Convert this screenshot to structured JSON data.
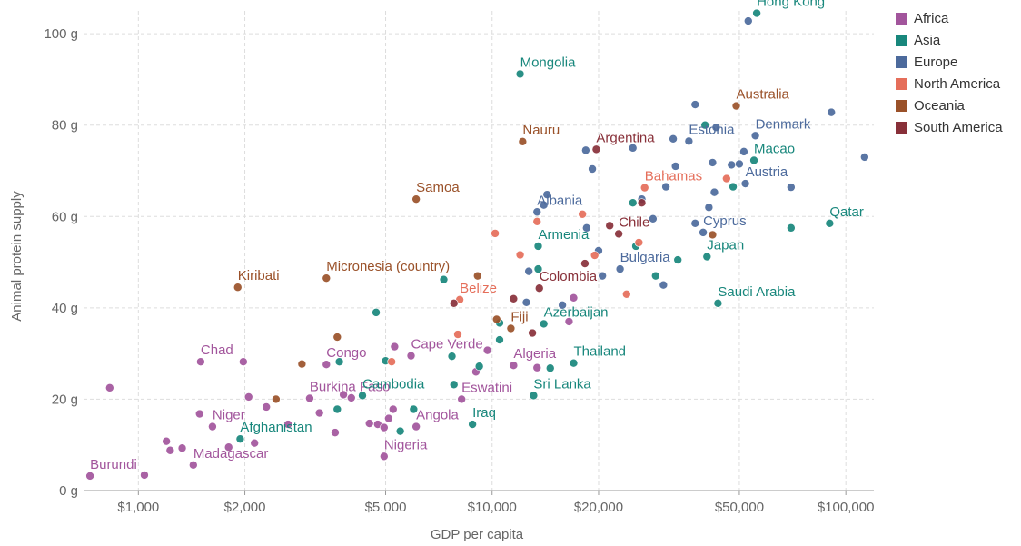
{
  "chart_data": {
    "type": "scatter",
    "xlabel": "GDP per capita",
    "ylabel": "Animal protein supply",
    "x_scale": "log",
    "xlim": [
      700,
      120000
    ],
    "ylim": [
      0,
      105
    ],
    "x_ticks": [
      1000,
      2000,
      5000,
      10000,
      20000,
      50000,
      100000
    ],
    "x_tick_labels": [
      "$1,000",
      "$2,000",
      "$5,000",
      "$10,000",
      "$20,000",
      "$50,000",
      "$100,000"
    ],
    "y_ticks": [
      0,
      20,
      40,
      60,
      80,
      100
    ],
    "y_tick_labels": [
      "0 g",
      "20 g",
      "40 g",
      "60 g",
      "80 g",
      "100 g"
    ],
    "grid": true,
    "legend_position": "right",
    "series": [
      {
        "name": "Africa",
        "color": "#a2559c",
        "points": [
          {
            "x": 730,
            "y": 3.2,
            "label": "Burundi"
          },
          {
            "x": 830,
            "y": 22.5
          },
          {
            "x": 1040,
            "y": 3.4
          },
          {
            "x": 1200,
            "y": 10.8
          },
          {
            "x": 1230,
            "y": 8.8
          },
          {
            "x": 1330,
            "y": 9.3
          },
          {
            "x": 1430,
            "y": 5.6,
            "label": "Madagascar"
          },
          {
            "x": 1490,
            "y": 16.8
          },
          {
            "x": 1620,
            "y": 14.0,
            "label": "Niger"
          },
          {
            "x": 1500,
            "y": 28.2,
            "label": "Chad"
          },
          {
            "x": 1800,
            "y": 9.5
          },
          {
            "x": 1980,
            "y": 28.2
          },
          {
            "x": 2050,
            "y": 20.5
          },
          {
            "x": 2130,
            "y": 10.4
          },
          {
            "x": 2300,
            "y": 18.3
          },
          {
            "x": 2650,
            "y": 14.5
          },
          {
            "x": 3050,
            "y": 20.2,
            "label": "Burkina Faso"
          },
          {
            "x": 3250,
            "y": 17.0
          },
          {
            "x": 3400,
            "y": 27.6,
            "label": "Congo"
          },
          {
            "x": 3600,
            "y": 12.7
          },
          {
            "x": 3800,
            "y": 21.0
          },
          {
            "x": 4000,
            "y": 20.3
          },
          {
            "x": 4500,
            "y": 14.7
          },
          {
            "x": 4750,
            "y": 14.5
          },
          {
            "x": 4950,
            "y": 13.8
          },
          {
            "x": 5100,
            "y": 15.8
          },
          {
            "x": 5250,
            "y": 17.8
          },
          {
            "x": 4950,
            "y": 7.5,
            "label": "Nigeria"
          },
          {
            "x": 5300,
            "y": 31.5
          },
          {
            "x": 5900,
            "y": 29.5,
            "label": "Cape Verde"
          },
          {
            "x": 6100,
            "y": 14.0,
            "label": "Angola"
          },
          {
            "x": 8200,
            "y": 20.0,
            "label": "Eswatini"
          },
          {
            "x": 9000,
            "y": 26.0
          },
          {
            "x": 9700,
            "y": 30.7
          },
          {
            "x": 11500,
            "y": 27.4,
            "label": "Algeria"
          },
          {
            "x": 13400,
            "y": 26.9
          },
          {
            "x": 16500,
            "y": 37.0
          },
          {
            "x": 17000,
            "y": 42.2
          }
        ]
      },
      {
        "name": "Asia",
        "color": "#18877c",
        "points": [
          {
            "x": 1940,
            "y": 11.3,
            "label": "Afghanistan"
          },
          {
            "x": 3650,
            "y": 17.8
          },
          {
            "x": 3700,
            "y": 28.2
          },
          {
            "x": 4300,
            "y": 20.8,
            "label": "Cambodia"
          },
          {
            "x": 4700,
            "y": 39.0
          },
          {
            "x": 5000,
            "y": 28.4
          },
          {
            "x": 5500,
            "y": 13.0
          },
          {
            "x": 6000,
            "y": 17.8
          },
          {
            "x": 7300,
            "y": 46.2
          },
          {
            "x": 7700,
            "y": 29.4
          },
          {
            "x": 7800,
            "y": 23.2
          },
          {
            "x": 8800,
            "y": 14.5,
            "label": "Iraq"
          },
          {
            "x": 9200,
            "y": 27.2
          },
          {
            "x": 10500,
            "y": 36.7
          },
          {
            "x": 10500,
            "y": 33.0
          },
          {
            "x": 12000,
            "y": 91.2,
            "label": "Mongolia"
          },
          {
            "x": 13100,
            "y": 20.8,
            "label": "Sri Lanka"
          },
          {
            "x": 13500,
            "y": 53.5,
            "label": "Armenia"
          },
          {
            "x": 13500,
            "y": 48.5
          },
          {
            "x": 14000,
            "y": 36.5,
            "label": "Azerbaijan"
          },
          {
            "x": 14600,
            "y": 26.8
          },
          {
            "x": 17000,
            "y": 27.9,
            "label": "Thailand"
          },
          {
            "x": 25000,
            "y": 63.0
          },
          {
            "x": 25500,
            "y": 53.5
          },
          {
            "x": 29000,
            "y": 47.0
          },
          {
            "x": 33500,
            "y": 50.5
          },
          {
            "x": 40000,
            "y": 80.0
          },
          {
            "x": 40500,
            "y": 51.2,
            "label": "Japan"
          },
          {
            "x": 43500,
            "y": 41.0,
            "label": "Saudi Arabia"
          },
          {
            "x": 48000,
            "y": 66.5
          },
          {
            "x": 55000,
            "y": 72.3,
            "label": "Macao"
          },
          {
            "x": 56000,
            "y": 104.5,
            "label": "Hong Kong"
          },
          {
            "x": 70000,
            "y": 57.5
          },
          {
            "x": 90000,
            "y": 58.5,
            "label": "Qatar"
          }
        ]
      },
      {
        "name": "Europe",
        "color": "#4c6a9c",
        "points": [
          {
            "x": 12500,
            "y": 41.2
          },
          {
            "x": 12700,
            "y": 48.0
          },
          {
            "x": 13400,
            "y": 61.0,
            "label": "Albania"
          },
          {
            "x": 14000,
            "y": 62.5
          },
          {
            "x": 14300,
            "y": 64.8
          },
          {
            "x": 15800,
            "y": 40.6
          },
          {
            "x": 18400,
            "y": 74.5
          },
          {
            "x": 18500,
            "y": 57.5
          },
          {
            "x": 19200,
            "y": 70.4
          },
          {
            "x": 20000,
            "y": 52.5
          },
          {
            "x": 20500,
            "y": 47.0
          },
          {
            "x": 23000,
            "y": 48.5,
            "label": "Bulgaria"
          },
          {
            "x": 25000,
            "y": 75.0
          },
          {
            "x": 26500,
            "y": 63.8
          },
          {
            "x": 28500,
            "y": 59.5
          },
          {
            "x": 30500,
            "y": 45.0
          },
          {
            "x": 31000,
            "y": 66.5
          },
          {
            "x": 32500,
            "y": 77.0
          },
          {
            "x": 33000,
            "y": 71.0
          },
          {
            "x": 36000,
            "y": 76.5,
            "label": "Estonia"
          },
          {
            "x": 37500,
            "y": 84.5
          },
          {
            "x": 37500,
            "y": 58.5
          },
          {
            "x": 39500,
            "y": 56.5,
            "label": "Cyprus"
          },
          {
            "x": 41000,
            "y": 62.0
          },
          {
            "x": 42000,
            "y": 71.8
          },
          {
            "x": 42500,
            "y": 65.3
          },
          {
            "x": 43000,
            "y": 79.5
          },
          {
            "x": 47500,
            "y": 71.3
          },
          {
            "x": 50000,
            "y": 71.5
          },
          {
            "x": 51500,
            "y": 74.2
          },
          {
            "x": 52000,
            "y": 67.2,
            "label": "Austria"
          },
          {
            "x": 55500,
            "y": 77.7,
            "label": "Denmark"
          },
          {
            "x": 53000,
            "y": 102.8
          },
          {
            "x": 70000,
            "y": 66.4
          },
          {
            "x": 91000,
            "y": 82.8
          },
          {
            "x": 113000,
            "y": 73.0
          }
        ]
      },
      {
        "name": "North America",
        "color": "#e56e5a",
        "points": [
          {
            "x": 5200,
            "y": 28.2
          },
          {
            "x": 8000,
            "y": 34.2
          },
          {
            "x": 8100,
            "y": 41.8,
            "label": "Belize"
          },
          {
            "x": 10200,
            "y": 56.3
          },
          {
            "x": 12000,
            "y": 51.6
          },
          {
            "x": 13400,
            "y": 58.9
          },
          {
            "x": 18000,
            "y": 60.5
          },
          {
            "x": 19500,
            "y": 51.5
          },
          {
            "x": 24000,
            "y": 43.0
          },
          {
            "x": 26000,
            "y": 54.3
          },
          {
            "x": 27000,
            "y": 66.3,
            "label": "Bahamas"
          },
          {
            "x": 46000,
            "y": 68.3
          }
        ]
      },
      {
        "name": "Oceania",
        "color": "#9a5129",
        "points": [
          {
            "x": 1910,
            "y": 44.5,
            "label": "Kiribati"
          },
          {
            "x": 2450,
            "y": 20.0
          },
          {
            "x": 2900,
            "y": 27.7
          },
          {
            "x": 3400,
            "y": 46.5,
            "label": "Micronesia (country)"
          },
          {
            "x": 3650,
            "y": 33.6
          },
          {
            "x": 6100,
            "y": 63.8,
            "label": "Samoa"
          },
          {
            "x": 9100,
            "y": 47.0
          },
          {
            "x": 10300,
            "y": 37.5
          },
          {
            "x": 11300,
            "y": 35.5,
            "label": "Fiji"
          },
          {
            "x": 12200,
            "y": 76.4,
            "label": "Nauru"
          },
          {
            "x": 42000,
            "y": 56.0
          },
          {
            "x": 49000,
            "y": 84.2,
            "label": "Australia"
          }
        ]
      },
      {
        "name": "South America",
        "color": "#883039",
        "points": [
          {
            "x": 7800,
            "y": 41.0
          },
          {
            "x": 11500,
            "y": 42.0
          },
          {
            "x": 13000,
            "y": 34.5
          },
          {
            "x": 13600,
            "y": 44.3,
            "label": "Colombia"
          },
          {
            "x": 18300,
            "y": 49.7
          },
          {
            "x": 19700,
            "y": 74.7,
            "label": "Argentina"
          },
          {
            "x": 21500,
            "y": 58.0
          },
          {
            "x": 22800,
            "y": 56.2,
            "label": "Chile"
          },
          {
            "x": 26500,
            "y": 63.0
          }
        ]
      }
    ]
  }
}
